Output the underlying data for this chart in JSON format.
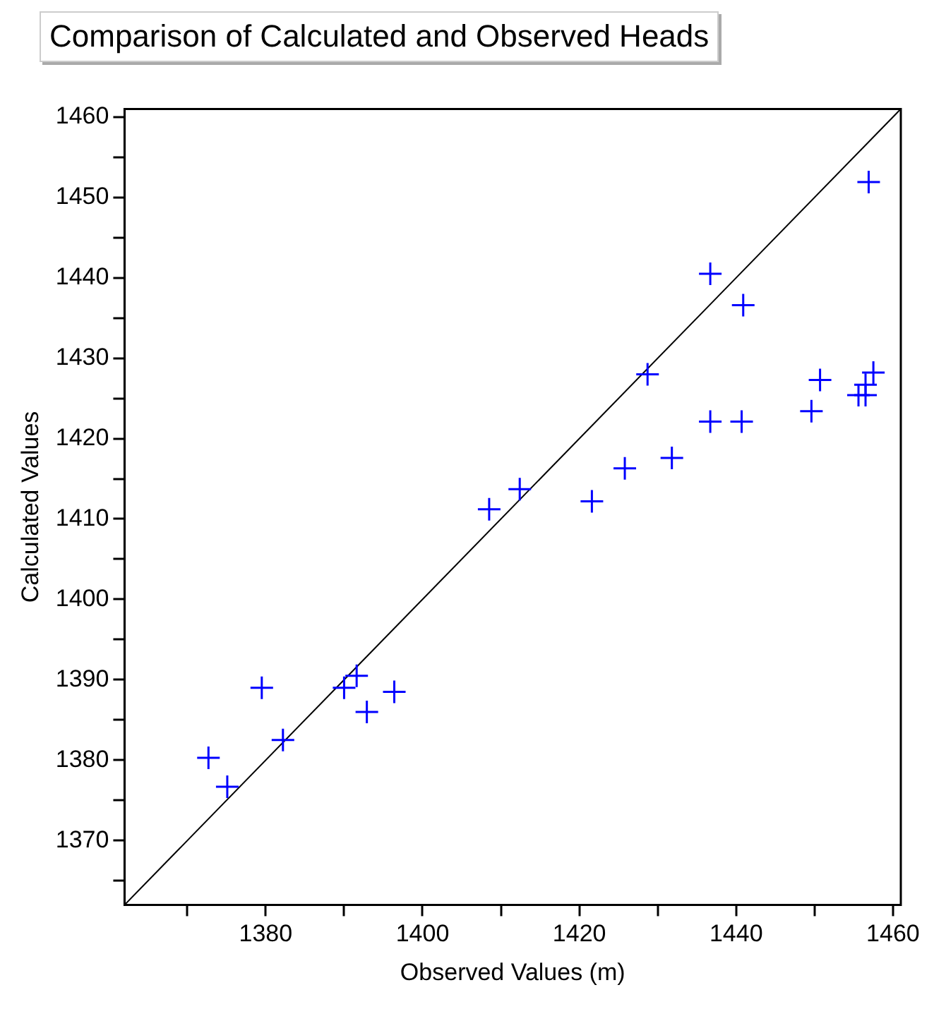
{
  "chart_data": {
    "type": "scatter",
    "title": "Comparison of Calculated and Observed Heads",
    "xlabel": "Observed Values (m)",
    "ylabel": "Calculated Values",
    "xlim": [
      1362,
      1461
    ],
    "ylim": [
      1362,
      1461
    ],
    "xticks": [
      {
        "value": 1370,
        "label": null
      },
      1380,
      {
        "value": 1390,
        "label": null
      },
      1400,
      {
        "value": 1410,
        "label": null
      },
      1420,
      {
        "value": 1430,
        "label": null
      },
      1440,
      {
        "value": 1450,
        "label": null
      },
      1460
    ],
    "yticks": [
      {
        "value": 1365,
        "label": null
      },
      1370,
      {
        "value": 1375,
        "label": null
      },
      1380,
      {
        "value": 1385,
        "label": null
      },
      1390,
      {
        "value": 1395,
        "label": null
      },
      1400,
      {
        "value": 1405,
        "label": null
      },
      1410,
      {
        "value": 1415,
        "label": null
      },
      1420,
      {
        "value": 1425,
        "label": null
      },
      1430,
      {
        "value": 1435,
        "label": null
      },
      1440,
      {
        "value": 1445,
        "label": null
      },
      1450,
      {
        "value": 1455,
        "label": null
      },
      1460
    ],
    "grid": false,
    "legend": false,
    "marker": "cross",
    "series": [
      {
        "type": "scatter",
        "color": "#0000ff",
        "x": [
          1372.7,
          1375.1,
          1379.5,
          1382.2,
          1390.0,
          1391.6,
          1392.9,
          1396.4,
          1408.5,
          1412.4,
          1421.6,
          1425.8,
          1431.8,
          1436.7,
          1440.7,
          1449.6,
          1450.7,
          1455.6,
          1456.5,
          1457.5,
          1456.5,
          1456.9,
          1436.7,
          1440.9,
          1428.7
        ],
        "values": [
          1380.3,
          1376.7,
          1389.0,
          1382.5,
          1389.0,
          1390.5,
          1386.0,
          1388.5,
          1411.2,
          1413.7,
          1412.2,
          1416.3,
          1417.6,
          1422.1,
          1422.1,
          1423.4,
          1427.3,
          1425.4,
          1426.7,
          1428.2,
          1425.4,
          1451.9,
          1440.5,
          1436.6,
          1428.0
        ]
      },
      {
        "type": "line",
        "color": "#000000",
        "marker": "none",
        "x": [
          1362,
          1461
        ],
        "values": [
          1362,
          1461
        ]
      }
    ]
  }
}
